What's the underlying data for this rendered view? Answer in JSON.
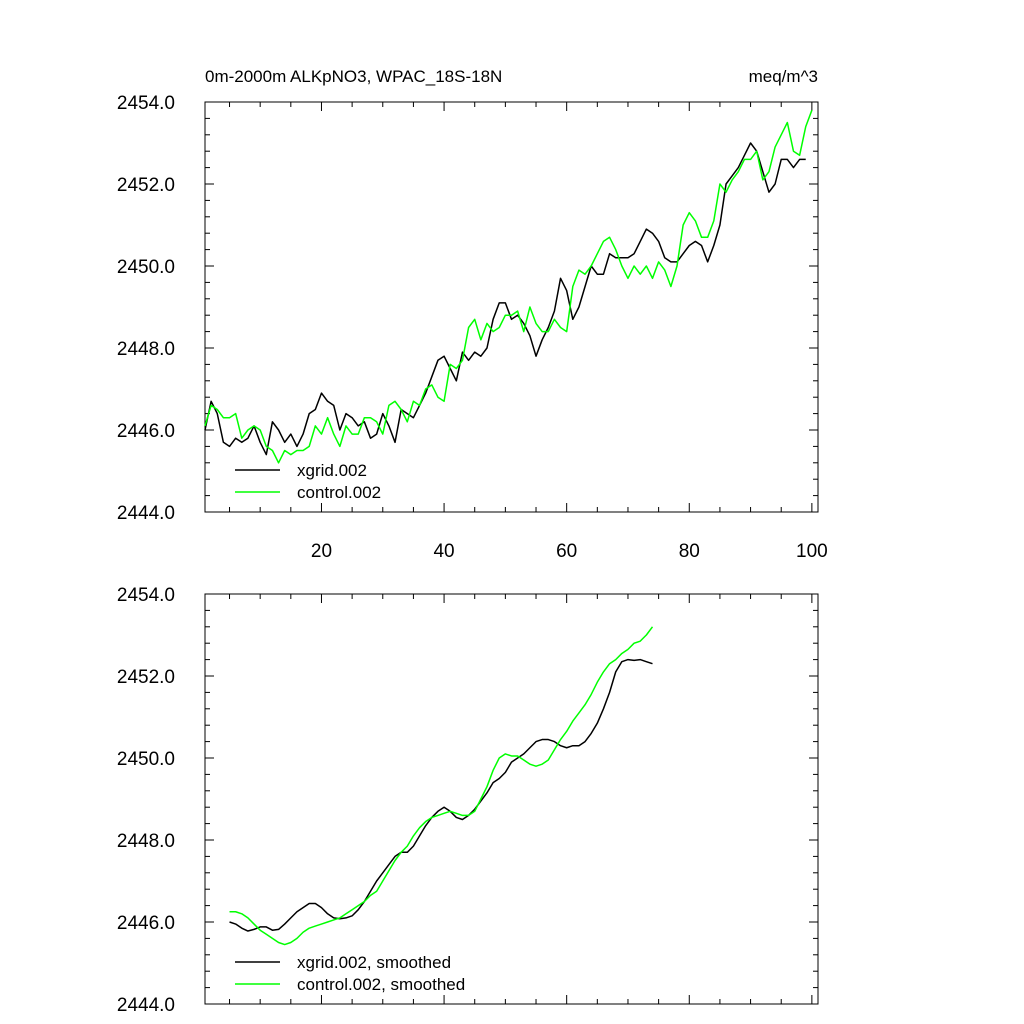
{
  "chart_data": [
    {
      "type": "line",
      "title_left": "0m-2000m ALKpNO3, WPAC_18S-18N",
      "title_right": "meq/m^3",
      "xlim": [
        1,
        101
      ],
      "ylim": [
        2444,
        2454
      ],
      "xticks": [
        20,
        40,
        60,
        80,
        100
      ],
      "yticks": [
        "2444.0",
        "2446.0",
        "2448.0",
        "2450.0",
        "2452.0",
        "2454.0"
      ],
      "show_x_tick_labels": true,
      "legend_position": "bottom-left",
      "series": [
        {
          "name": "xgrid.002",
          "color": "#000000",
          "x_start": 1,
          "values": [
            2446.0,
            2446.7,
            2446.4,
            2445.7,
            2445.6,
            2445.8,
            2445.7,
            2445.8,
            2446.1,
            2445.7,
            2445.4,
            2446.2,
            2446.0,
            2445.7,
            2445.9,
            2445.6,
            2445.9,
            2446.4,
            2446.5,
            2446.9,
            2446.7,
            2446.6,
            2446.0,
            2446.4,
            2446.3,
            2446.1,
            2446.2,
            2445.8,
            2445.9,
            2446.4,
            2446.1,
            2445.7,
            2446.5,
            2446.4,
            2446.3,
            2446.6,
            2446.9,
            2447.3,
            2447.7,
            2447.8,
            2447.5,
            2447.2,
            2447.9,
            2447.7,
            2447.9,
            2447.8,
            2448.0,
            2448.7,
            2449.1,
            2449.1,
            2448.7,
            2448.8,
            2448.6,
            2448.3,
            2447.8,
            2448.2,
            2448.5,
            2448.9,
            2449.7,
            2449.4,
            2448.7,
            2449.0,
            2449.5,
            2450.0,
            2449.8,
            2449.8,
            2450.3,
            2450.2,
            2450.2,
            2450.2,
            2450.3,
            2450.6,
            2450.9,
            2450.8,
            2450.6,
            2450.2,
            2450.1,
            2450.1,
            2450.3,
            2450.5,
            2450.6,
            2450.5,
            2450.1,
            2450.5,
            2451.0,
            2452.0,
            2452.2,
            2452.4,
            2452.7,
            2453.0,
            2452.8,
            2452.3,
            2451.8,
            2452.0,
            2452.6,
            2452.6,
            2452.4,
            2452.6,
            2452.6
          ]
        },
        {
          "name": "control.002",
          "color": "#00ff00",
          "x_start": 1,
          "values": [
            2446.1,
            2446.6,
            2446.5,
            2446.3,
            2446.3,
            2446.4,
            2445.8,
            2446.0,
            2446.1,
            2446.0,
            2445.6,
            2445.5,
            2445.2,
            2445.5,
            2445.4,
            2445.5,
            2445.5,
            2445.6,
            2446.1,
            2445.9,
            2446.3,
            2445.9,
            2445.6,
            2446.1,
            2445.9,
            2445.9,
            2446.3,
            2446.3,
            2446.2,
            2445.9,
            2446.6,
            2446.7,
            2446.5,
            2446.2,
            2446.7,
            2446.6,
            2447.0,
            2447.1,
            2446.8,
            2446.7,
            2447.6,
            2447.5,
            2447.7,
            2448.5,
            2448.7,
            2448.2,
            2448.6,
            2448.4,
            2448.5,
            2448.8,
            2448.8,
            2448.9,
            2448.4,
            2449.0,
            2448.6,
            2448.4,
            2448.4,
            2448.7,
            2448.5,
            2448.4,
            2449.5,
            2449.9,
            2449.8,
            2450.0,
            2450.3,
            2450.6,
            2450.7,
            2450.4,
            2450.0,
            2449.7,
            2450.0,
            2449.8,
            2450.0,
            2449.7,
            2450.1,
            2449.9,
            2449.5,
            2450.0,
            2451.0,
            2451.3,
            2451.1,
            2450.7,
            2450.7,
            2451.1,
            2452.0,
            2451.8,
            2452.1,
            2452.3,
            2452.6,
            2452.6,
            2452.8,
            2452.1,
            2452.3,
            2452.9,
            2453.2,
            2453.5,
            2452.8,
            2452.7,
            2453.4,
            2453.8
          ]
        }
      ]
    },
    {
      "type": "line",
      "xlim": [
        1,
        101
      ],
      "ylim": [
        2444,
        2454
      ],
      "xticks": [
        20,
        40,
        60,
        80,
        100
      ],
      "yticks": [
        "2444.0",
        "2446.0",
        "2448.0",
        "2450.0",
        "2452.0",
        "2454.0"
      ],
      "show_x_tick_labels": false,
      "legend_position": "bottom-left",
      "series": [
        {
          "name": "xgrid.002, smoothed",
          "color": "#000000",
          "x_start": 5,
          "values": [
            2446.0,
            2445.95,
            2445.85,
            2445.78,
            2445.82,
            2445.88,
            2445.88,
            2445.8,
            2445.82,
            2445.95,
            2446.1,
            2446.25,
            2446.35,
            2446.45,
            2446.45,
            2446.35,
            2446.2,
            2446.1,
            2446.08,
            2446.1,
            2446.15,
            2446.3,
            2446.5,
            2446.75,
            2447.0,
            2447.2,
            2447.4,
            2447.6,
            2447.7,
            2447.7,
            2447.85,
            2448.1,
            2448.35,
            2448.55,
            2448.7,
            2448.8,
            2448.7,
            2448.55,
            2448.5,
            2448.6,
            2448.75,
            2448.95,
            2449.15,
            2449.4,
            2449.5,
            2449.65,
            2449.9,
            2450.0,
            2450.1,
            2450.25,
            2450.4,
            2450.45,
            2450.45,
            2450.4,
            2450.3,
            2450.25,
            2450.3,
            2450.3,
            2450.4,
            2450.6,
            2450.85,
            2451.2,
            2451.6,
            2452.1,
            2452.35,
            2452.4,
            2452.38,
            2452.4,
            2452.35,
            2452.3
          ]
        },
        {
          "name": "control.002, smoothed",
          "color": "#00ff00",
          "x_start": 5,
          "values": [
            2446.25,
            2446.25,
            2446.2,
            2446.1,
            2445.95,
            2445.8,
            2445.7,
            2445.6,
            2445.5,
            2445.45,
            2445.5,
            2445.6,
            2445.75,
            2445.85,
            2445.9,
            2445.95,
            2446.0,
            2446.05,
            2446.1,
            2446.2,
            2446.3,
            2446.4,
            2446.5,
            2446.65,
            2446.75,
            2447.0,
            2447.25,
            2447.5,
            2447.7,
            2447.85,
            2448.1,
            2448.3,
            2448.45,
            2448.55,
            2448.6,
            2448.65,
            2448.7,
            2448.65,
            2448.6,
            2448.6,
            2448.7,
            2449.0,
            2449.3,
            2449.7,
            2450.0,
            2450.1,
            2450.05,
            2450.05,
            2449.95,
            2449.85,
            2449.8,
            2449.85,
            2449.95,
            2450.2,
            2450.45,
            2450.65,
            2450.9,
            2451.1,
            2451.3,
            2451.55,
            2451.85,
            2452.1,
            2452.3,
            2452.4,
            2452.55,
            2452.65,
            2452.8,
            2452.85,
            2453.0,
            2453.2
          ]
        }
      ]
    }
  ]
}
